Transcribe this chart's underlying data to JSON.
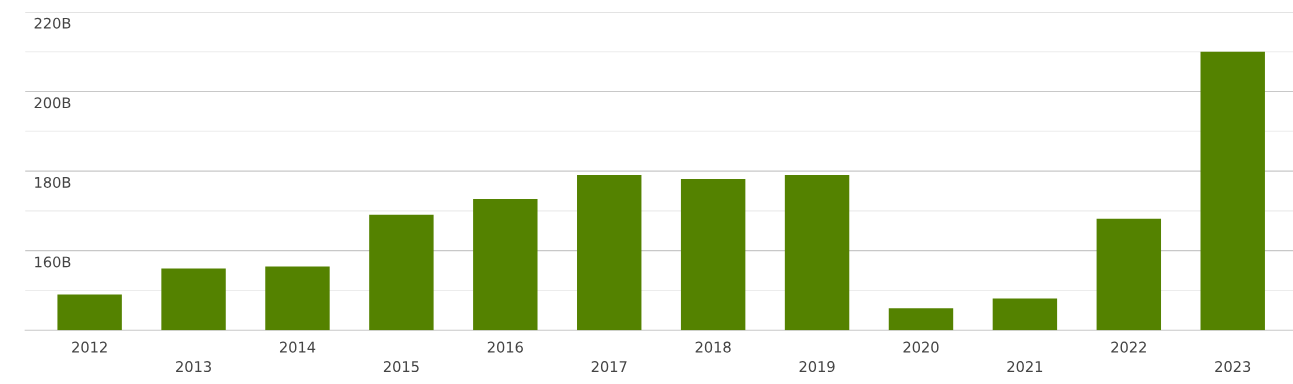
{
  "chart_data": {
    "type": "bar",
    "categories": [
      "2012",
      "2013",
      "2014",
      "2015",
      "2016",
      "2017",
      "2018",
      "2019",
      "2020",
      "2021",
      "2022",
      "2023"
    ],
    "values": [
      149,
      155.5,
      156,
      169,
      173,
      179,
      178,
      179,
      145.5,
      148,
      168,
      210
    ],
    "color": "#548200",
    "ylim": [
      140,
      220
    ],
    "yticks": [
      {
        "value": 150,
        "label": null
      },
      {
        "value": 160,
        "label": "160B"
      },
      {
        "value": 170,
        "label": null
      },
      {
        "value": 180,
        "label": "180B"
      },
      {
        "value": 190,
        "label": null
      },
      {
        "value": 200,
        "label": "200B"
      },
      {
        "value": 210,
        "label": null
      },
      {
        "value": 220,
        "label": "220B"
      }
    ],
    "grid": "y",
    "legend": false
  }
}
